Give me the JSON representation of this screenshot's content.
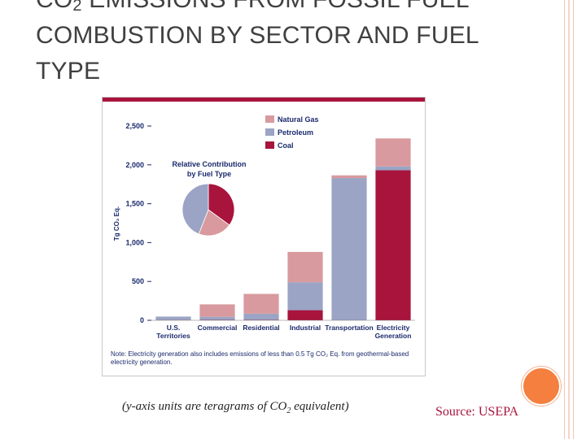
{
  "slide": {
    "title_pre": "CO",
    "title_sub": "2",
    "title_post": " EMISSIONS FROM FOSSIL FUEL COMBUSTION BY SECTOR AND FUEL TYPE",
    "caption_pre": "(y-axis units are teragrams of CO",
    "caption_sub": "2",
    "caption_post": " equivalent)",
    "source": "Source: USEPA",
    "accent_color": "#f47f3e"
  },
  "chart_data": {
    "type": "bar",
    "stacked": true,
    "ylabel": "Tg CO₂ Eq.",
    "ylim": [
      0,
      2500
    ],
    "yticks": [
      0,
      500,
      1000,
      1500,
      2000,
      2500
    ],
    "ytick_labels": [
      "0",
      "500",
      "1,000",
      "1,500",
      "2,000",
      "2,500"
    ],
    "categories": [
      "U.S. Territories",
      "Commercial",
      "Residential",
      "Industrial",
      "Transportation",
      "Electricity Generation"
    ],
    "category_lines": [
      [
        "U.S.",
        "Territories"
      ],
      [
        "Commercial"
      ],
      [
        "Residential"
      ],
      [
        "Industrial"
      ],
      [
        "Transportation"
      ],
      [
        "Electricity",
        "Generation"
      ]
    ],
    "series": [
      {
        "name": "Coal",
        "color": "#a8143c",
        "values": [
          3,
          5,
          5,
          130,
          0,
          1930
        ]
      },
      {
        "name": "Petroleum",
        "color": "#9ba4c4",
        "values": [
          45,
          40,
          80,
          360,
          1830,
          50
        ]
      },
      {
        "name": "Natural Gas",
        "color": "#d89a9e",
        "values": [
          0,
          160,
          255,
          390,
          35,
          360
        ]
      }
    ],
    "legend_order": [
      "Natural Gas",
      "Petroleum",
      "Coal"
    ],
    "legend_position": "top-right",
    "pie": {
      "title": "Relative Contribution by Fuel Type",
      "title_lines": [
        "Relative Contribution",
        "by Fuel Type"
      ],
      "slices": [
        {
          "name": "Coal",
          "value": 35
        },
        {
          "name": "Natural Gas",
          "value": 21
        },
        {
          "name": "Petroleum",
          "value": 44
        }
      ]
    },
    "note": "Note: Electricity generation also includes emissions of less than 0.5 Tg CO₂ Eq. from geothermal-based electricity generation."
  }
}
